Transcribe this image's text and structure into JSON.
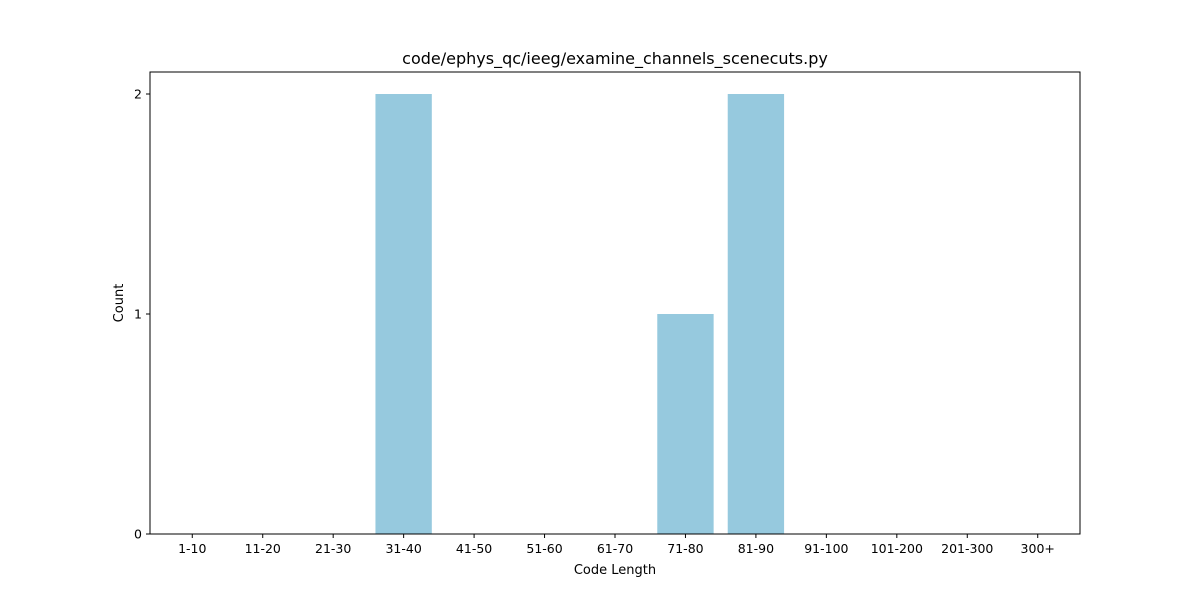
{
  "chart_data": {
    "type": "bar",
    "title": "code/ephys_qc/ieeg/examine_channels_scenecuts.py",
    "xlabel": "Code Length",
    "ylabel": "Count",
    "categories": [
      "1-10",
      "11-20",
      "21-30",
      "31-40",
      "41-50",
      "51-60",
      "61-70",
      "71-80",
      "81-90",
      "91-100",
      "101-200",
      "201-300",
      "300+"
    ],
    "values": [
      0,
      0,
      0,
      2,
      0,
      0,
      0,
      1,
      2,
      0,
      0,
      0,
      0
    ],
    "ylim": [
      0,
      2.1
    ],
    "yticks": [
      0,
      1,
      2
    ],
    "bar_color": "#96c9de",
    "grid": false,
    "legend": "none"
  }
}
